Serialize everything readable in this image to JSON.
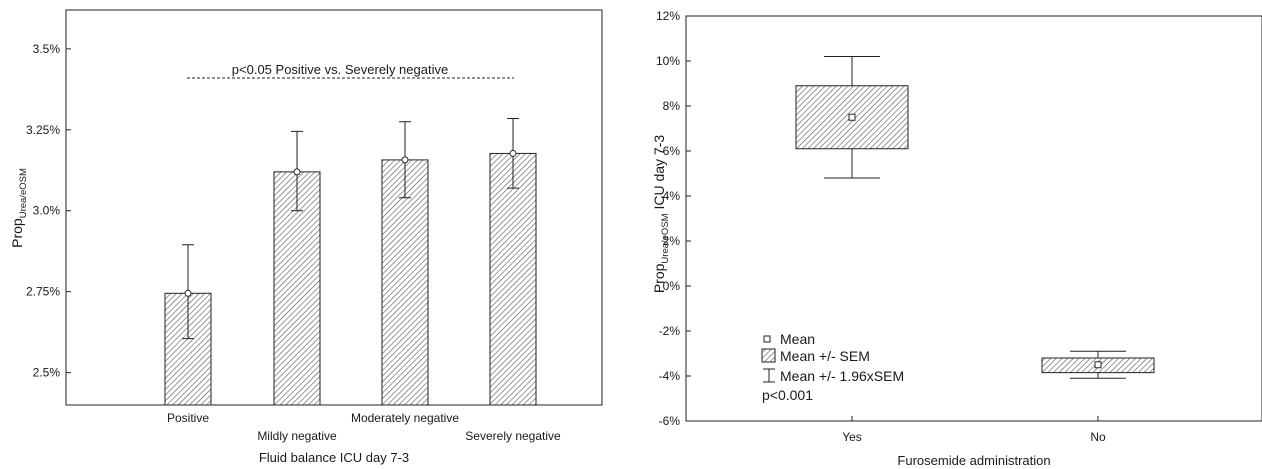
{
  "chart_data": [
    {
      "type": "bar",
      "categories": [
        "Positive",
        "Mildly negative",
        "Moderately negative",
        "Severely negative"
      ],
      "values": [
        2.745,
        3.12,
        3.157,
        3.177
      ],
      "error_low": [
        2.605,
        3.0,
        3.04,
        3.07
      ],
      "error_high": [
        2.895,
        3.245,
        3.275,
        3.285
      ],
      "ylim": [
        2.4,
        3.62
      ],
      "yticks": [
        2.5,
        2.75,
        3.0,
        3.25,
        3.5
      ],
      "ytick_labels": [
        "2.5%",
        "2.75%",
        "3.0%",
        "3.25%",
        "3.5%"
      ],
      "xlabel": "Fluid balance ICU day 7-3",
      "ylabel_main": "Prop",
      "ylabel_sub": "Urea/eOSM",
      "annotation": "p<0.05 Positive vs. Severely negative",
      "annotation_level": 3.38,
      "grid": false
    },
    {
      "type": "box",
      "categories": [
        "Yes",
        "No"
      ],
      "mean": [
        7.5,
        -3.5
      ],
      "sem_low": [
        6.1,
        -3.85
      ],
      "sem_high": [
        8.9,
        -3.2
      ],
      "ci_low": [
        4.8,
        -4.1
      ],
      "ci_high": [
        10.2,
        -2.9
      ],
      "ylim": [
        -6,
        12
      ],
      "yticks": [
        -6,
        -4,
        -2,
        0,
        2,
        4,
        6,
        8,
        10,
        12
      ],
      "ytick_labels": [
        "-6%",
        "-4%",
        "-2%",
        "0%",
        "2%",
        "4%",
        "6%",
        "8%",
        "10%",
        "12%"
      ],
      "xlabel": "Furosemide administration",
      "ylabel_main": "Prop",
      "ylabel_sub": "Urea/eOSM",
      "ylabel_rest": " ICU day 7-3",
      "legend": [
        "Mean",
        "Mean +/- SEM",
        "Mean +/- 1.96xSEM"
      ],
      "annotation": "p<0.001",
      "legend_position": "bottom-left",
      "grid": false
    }
  ]
}
